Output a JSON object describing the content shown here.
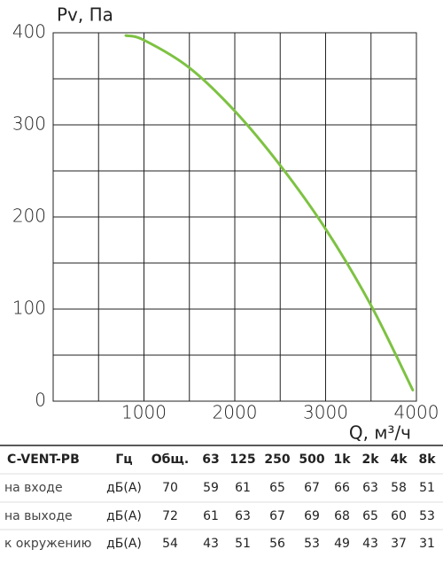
{
  "chart_data": {
    "type": "line",
    "ylabel": "Pv, Па",
    "xlabel": "Q, м³/ч",
    "x": [
      800,
      1000,
      1500,
      2000,
      2500,
      3000,
      3500,
      3960
    ],
    "series": [
      {
        "name": "C-VENT-PB",
        "color": "#7dc242",
        "values": [
          397,
          392,
          362,
          315,
          256,
          187,
          104,
          12
        ]
      }
    ],
    "xlim": [
      0,
      4000
    ],
    "xticks": [
      1000,
      2000,
      3000,
      4000
    ],
    "xminor": [
      500,
      1500,
      2500,
      3500
    ],
    "ylim": [
      0,
      400
    ],
    "yticks": [
      0,
      100,
      200,
      300,
      400
    ],
    "yminor": [
      50,
      150,
      250,
      350
    ],
    "grid": true
  },
  "table": {
    "header": [
      "C-VENT-PB",
      "Гц",
      "Общ.",
      "63",
      "125",
      "250",
      "500",
      "1k",
      "2k",
      "4k",
      "8k"
    ],
    "rows": [
      [
        "на входе",
        "дБ(А)",
        "70",
        "59",
        "61",
        "65",
        "67",
        "66",
        "63",
        "58",
        "51"
      ],
      [
        "на выходе",
        "дБ(А)",
        "72",
        "61",
        "63",
        "67",
        "69",
        "68",
        "65",
        "60",
        "53"
      ],
      [
        "к окружению",
        "дБ(А)",
        "54",
        "43",
        "51",
        "56",
        "53",
        "49",
        "43",
        "37",
        "31"
      ]
    ]
  }
}
